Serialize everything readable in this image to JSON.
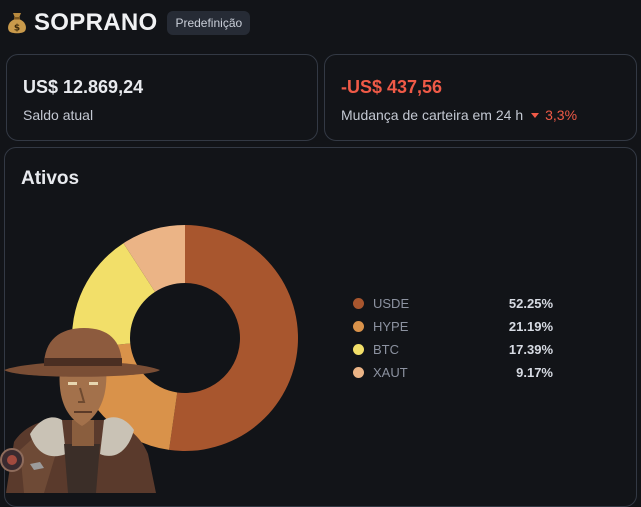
{
  "header": {
    "icon": "money-bag-icon",
    "title": "SOPRANO",
    "badge": "Predefinição"
  },
  "balance": {
    "value": "US$ 12.869,24",
    "label": "Saldo atual"
  },
  "change": {
    "value": "-US$ 437,56",
    "label": "Mudança de carteira em 24 h",
    "percent": "3,3%",
    "direction": "down",
    "color": "#f05a47"
  },
  "assets": {
    "title": "Ativos"
  },
  "chart_data": {
    "type": "pie",
    "categories": [
      "USDE",
      "HYPE",
      "BTC",
      "XAUT"
    ],
    "values": [
      52.25,
      21.19,
      17.39,
      9.17
    ],
    "value_labels": [
      "52.25%",
      "21.19%",
      "17.39%",
      "9.17%"
    ],
    "colors": [
      "#a8562e",
      "#d9924a",
      "#f2df69",
      "#ebb486"
    ],
    "legend": "right"
  }
}
